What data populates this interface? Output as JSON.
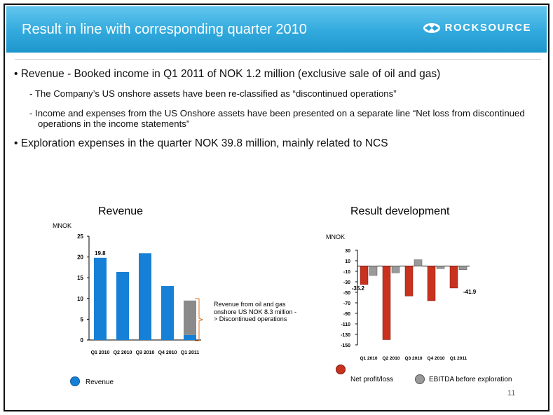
{
  "header": {
    "title": "Result in line with corresponding quarter 2010",
    "logo_text": "ROCKSOURCE",
    "colors": {
      "band_top": "#62c6ee",
      "band_bottom": "#1e96cc"
    }
  },
  "bullets": [
    {
      "text": "• Revenue - Booked income in Q1 2011 of NOK 1.2 million (exclusive sale of oil and gas)"
    },
    {
      "text": "- The Company’s US onshore assets have been re-classified as “discontinued operations”"
    },
    {
      "text": "- Income and expenses from the US Onshore assets have been presented on a separate line “Net loss from discontinued operations in the income statements”"
    },
    {
      "text": "• Exploration expenses in the quarter NOK 39.8 million, mainly related to NCS"
    }
  ],
  "chart_data": [
    {
      "type": "bar",
      "title": "Revenue",
      "ylabel": "MNOK",
      "ylim": [
        0,
        25
      ],
      "yticks": [
        "0",
        "5",
        "10",
        "15",
        "20",
        "25"
      ],
      "categories": [
        "Q1 2010",
        "Q2 2010",
        "Q3 2010",
        "Q4 2010",
        "Q1 2011"
      ],
      "series": [
        {
          "name": "Revenue",
          "values": [
            19.8,
            16.4,
            20.9,
            13.0,
            1.2
          ],
          "color": "#1680d6"
        }
      ],
      "discontinued": {
        "category": "Q1 2011",
        "value": 8.3,
        "color": "#8a8a8a"
      },
      "data_labels": [
        {
          "category": "Q1 2010",
          "text": "19.8"
        }
      ],
      "annotation": "Revenue from oil and gas onshore US NOK 8.3 million -> Discontinued operations",
      "legend": [
        {
          "name": "Revenue",
          "color": "#1680d6"
        }
      ]
    },
    {
      "type": "bar",
      "title": "Result development",
      "ylabel": "MNOK",
      "ylim": [
        -150,
        30
      ],
      "yticks": [
        "30",
        "10",
        "-10",
        "-30",
        "-50",
        "-70",
        "-90",
        "-110",
        "-130",
        "-150"
      ],
      "categories": [
        "Q1 2010",
        "Q2 2010",
        "Q3 2010",
        "Q4 2010",
        "Q1 2011"
      ],
      "series": [
        {
          "name": "Net profit/loss",
          "values": [
            -35.2,
            -140.0,
            -57.0,
            -66.0,
            -41.9
          ],
          "color": "#c8321e"
        },
        {
          "name": "EBITDA before exploration",
          "values": [
            -18.0,
            -13.0,
            12.0,
            -5.0,
            -7.0
          ],
          "color": "#9a9a9a"
        }
      ],
      "data_labels": [
        {
          "category": "Q1 2010",
          "text": "-35.2"
        },
        {
          "category": "Q1 2011",
          "text": "-41.9"
        }
      ],
      "legend": [
        {
          "name": "Net profit/loss",
          "color": "#c8321e"
        },
        {
          "name": "EBITDA before exploration",
          "color": "#9a9a9a"
        }
      ]
    }
  ],
  "page_number": "11"
}
